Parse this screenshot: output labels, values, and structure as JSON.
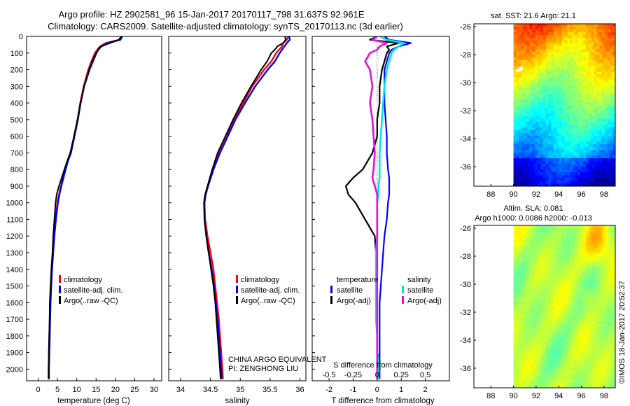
{
  "header": {
    "line1": "Argo profile: HZ 2902581_96 15-Jan-2017 20170117_798 31.637S 92.961E",
    "line2": "Climatology: CARS2009. Satellite-adjusted climatology: synTS_20170113.nc (3d earlier)"
  },
  "colors": {
    "climatology": "#ff0000",
    "satellite": "#0000ff",
    "argo": "#000000",
    "satellite_s": "#00e5e5",
    "argo_s": "#e010e0"
  },
  "legend": {
    "climatology": "climatology",
    "satellite_adj": "satellite-adj. clim.",
    "argo_raw": "Argo(..raw -QC)"
  },
  "diff_legend": {
    "temperature": "temperature",
    "salinity": "salinity",
    "satellite": "satellite",
    "argo_adj": "Argo(-adj)"
  },
  "chart_data": [
    {
      "type": "line",
      "name": "temperature-profile",
      "xlabel": "temperature (deg C)",
      "ylabel": "",
      "xlim": [
        -3,
        32
      ],
      "ylim": [
        2070,
        0
      ],
      "xticks": [
        0,
        5,
        10,
        15,
        20,
        25,
        30
      ],
      "yticks": [
        0,
        100,
        200,
        300,
        400,
        500,
        600,
        700,
        800,
        900,
        1000,
        1100,
        1200,
        1300,
        1400,
        1500,
        1600,
        1700,
        1800,
        1900,
        2000
      ],
      "y": [
        0,
        20,
        40,
        60,
        80,
        100,
        150,
        200,
        300,
        400,
        500,
        600,
        700,
        750,
        800,
        900,
        950,
        1000,
        1100,
        1200,
        1300,
        1400,
        1500,
        1600,
        1700,
        1800,
        1900,
        2000,
        2060
      ],
      "series": [
        {
          "name": "climatology",
          "values": [
            21.6,
            21.0,
            17.5,
            16.0,
            15.3,
            14.7,
            13.8,
            13.0,
            11.8,
            10.9,
            10.2,
            9.3,
            8.4,
            7.6,
            7.0,
            5.9,
            5.4,
            5.0,
            4.5,
            4.1,
            3.8,
            3.5,
            3.3,
            3.1,
            3.0,
            2.9,
            2.8,
            2.7,
            2.7
          ]
        },
        {
          "name": "satellite-adj. clim.",
          "values": [
            21.8,
            21.3,
            18.0,
            16.3,
            15.6,
            15.1,
            14.2,
            13.3,
            11.9,
            11.0,
            10.3,
            9.4,
            8.5,
            7.7,
            7.1,
            6.0,
            5.5,
            5.1,
            4.6,
            4.2,
            3.9,
            3.6,
            3.4,
            3.2,
            3.1,
            3.0,
            2.9,
            2.8,
            2.8
          ]
        },
        {
          "name": "Argo(..raw -QC)",
          "values": [
            21.5,
            20.9,
            18.6,
            16.4,
            15.6,
            15.0,
            14.0,
            13.2,
            11.9,
            11.0,
            10.2,
            9.3,
            8.3,
            7.5,
            6.8,
            5.4,
            4.8,
            4.5,
            4.2,
            3.9,
            3.7,
            3.4,
            3.2,
            3.0,
            2.95,
            2.85,
            2.75,
            2.7,
            2.7
          ]
        }
      ]
    },
    {
      "type": "line",
      "name": "salinity-profile",
      "xlabel": "salinity",
      "ylabel": "",
      "xlim": [
        33.8,
        36.1
      ],
      "ylim": [
        2070,
        0
      ],
      "xticks": [
        34,
        34.5,
        35,
        35.5,
        36
      ],
      "y": [
        0,
        20,
        40,
        60,
        80,
        100,
        150,
        200,
        300,
        400,
        500,
        600,
        700,
        800,
        900,
        950,
        1000,
        1100,
        1200,
        1300,
        1400,
        1500,
        1600,
        1700,
        1800,
        1900,
        2000,
        2060
      ],
      "series": [
        {
          "name": "climatology",
          "values": [
            35.8,
            35.78,
            35.72,
            35.7,
            35.65,
            35.6,
            35.52,
            35.4,
            35.2,
            35.05,
            34.9,
            34.78,
            34.65,
            34.55,
            34.46,
            34.42,
            34.4,
            34.41,
            34.45,
            34.5,
            34.55,
            34.58,
            34.61,
            34.64,
            34.66,
            34.68,
            34.7,
            34.71
          ]
        },
        {
          "name": "satellite-adj. clim.",
          "values": [
            35.82,
            35.83,
            35.78,
            35.74,
            35.7,
            35.66,
            35.58,
            35.46,
            35.25,
            35.08,
            34.92,
            34.79,
            34.66,
            34.55,
            34.46,
            34.42,
            34.4,
            34.4,
            34.43,
            34.47,
            34.52,
            34.56,
            34.59,
            34.62,
            34.64,
            34.66,
            34.68,
            34.69
          ]
        },
        {
          "name": "Argo(..raw -QC)",
          "values": [
            35.75,
            35.76,
            35.72,
            35.62,
            35.58,
            35.52,
            35.45,
            35.35,
            35.18,
            35.02,
            34.88,
            34.75,
            34.62,
            34.53,
            34.45,
            34.41,
            34.39,
            34.4,
            34.43,
            34.47,
            34.51,
            34.55,
            34.58,
            34.6,
            34.62,
            34.64,
            34.66,
            34.67
          ]
        }
      ]
    },
    {
      "type": "line",
      "name": "difference-from-climatology",
      "xlabel": "T difference from climatology",
      "xlabel_top": "S difference from climatology",
      "xlim": [
        -2.7,
        3.0
      ],
      "ylim": [
        2070,
        0
      ],
      "xticks": [
        -2,
        -1,
        0,
        1,
        2
      ],
      "top_xticks": [
        "-0.5",
        "-0.25",
        "0",
        "0.25",
        "0.5"
      ],
      "top_xticks_pos": [
        -2,
        -1,
        0,
        1,
        2
      ],
      "y": [
        0,
        20,
        40,
        60,
        80,
        100,
        150,
        200,
        300,
        400,
        500,
        600,
        700,
        800,
        850,
        900,
        950,
        1000,
        1100,
        1200,
        1300,
        1400,
        1500,
        1600,
        1700,
        1800,
        1900,
        1950,
        2000,
        2060
      ],
      "series": [
        {
          "name": "temperature satellite",
          "values": [
            0.3,
            0.5,
            1.4,
            0.9,
            0.6,
            0.5,
            0.4,
            0.3,
            0.3,
            0.3,
            0.35,
            0.4,
            0.4,
            0.45,
            0.5,
            0.5,
            0.5,
            0.45,
            0.4,
            0.3,
            0.25,
            0.2,
            0.15,
            0.1,
            0.1,
            0.1,
            0.1,
            0.1,
            0.1,
            0.1
          ]
        },
        {
          "name": "temperature Argo(-adj)",
          "values": [
            0.0,
            -0.3,
            0.9,
            0.4,
            0.5,
            0.4,
            0.3,
            0.2,
            0.1,
            0.1,
            0.0,
            0.0,
            -0.2,
            -0.6,
            -1.0,
            -1.3,
            -1.2,
            -0.9,
            -0.5,
            -0.1,
            -0.05,
            0.0,
            0.0,
            0.0,
            0.0,
            0.0,
            0.0,
            0.1,
            0.1,
            0.0
          ]
        },
        {
          "name": "salinity satellite",
          "values": [
            0.1,
            0.4,
            1.1,
            0.9,
            0.7,
            0.6,
            0.5,
            0.4,
            0.3,
            0.25,
            0.2,
            0.15,
            0.1,
            0.1,
            0.1,
            0.05,
            0.05,
            0.0,
            0.0,
            0.0,
            -0.05,
            -0.05,
            -0.05,
            -0.05,
            -0.05,
            0.0,
            0.0,
            0.05,
            0.05,
            0.05
          ]
        },
        {
          "name": "salinity Argo(-adj)",
          "values": [
            0.0,
            -0.2,
            0.4,
            0.1,
            0.0,
            -0.3,
            -0.5,
            -0.3,
            -0.2,
            -0.3,
            -0.2,
            -0.15,
            -0.1,
            -0.15,
            -0.2,
            -0.1,
            0.0,
            0.0,
            0.0,
            0.0,
            0.0,
            0.0,
            0.0,
            0.0,
            0.0,
            0.0,
            0.0,
            0.0,
            0.0,
            0.0
          ]
        }
      ]
    },
    {
      "type": "heatmap",
      "name": "sst-map",
      "title": "sat. SST: 21.6 Argo: 21.1",
      "xlim": [
        86.5,
        99
      ],
      "ylim": [
        -37.4,
        -25.8
      ],
      "xticks": [
        88,
        90,
        92,
        94,
        96,
        98
      ],
      "yticks": [
        -26,
        -28,
        -30,
        -32,
        -34,
        -36
      ],
      "data_start_lon": 90
    },
    {
      "type": "heatmap",
      "name": "sla-map",
      "title_line1": "Altim. SLA: 0.081",
      "title_line2": "Argo h1000: 0.0086 h2000: -0.013",
      "xlim": [
        86.5,
        99
      ],
      "ylim": [
        -37.4,
        -25.8
      ],
      "xticks": [
        88,
        90,
        92,
        94,
        96,
        98
      ],
      "yticks": [
        -26,
        -28,
        -30,
        -32,
        -34,
        -36
      ],
      "data_start_lon": 90
    }
  ],
  "annotations": {
    "project_line1": "CHINA ARGO EQUIVALENT",
    "project_line2": "PI: ZENGHONG LIU",
    "credit": "©IMOS 18-Jan-2017 20:52:37"
  }
}
